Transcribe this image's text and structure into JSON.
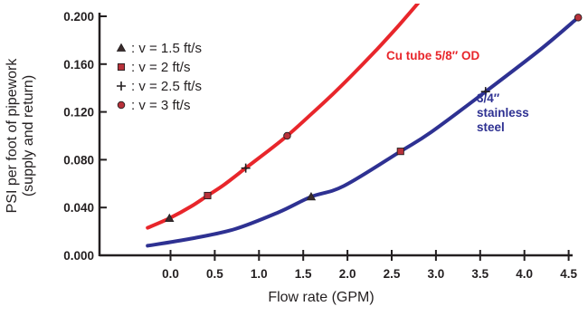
{
  "chart_data": {
    "type": "line",
    "xlabel": "Flow rate (GPM)",
    "ylabel_lines": [
      "PSI per foot of pipework",
      "(supply and return)"
    ],
    "x_ticks": [
      "0.0",
      "0.5",
      "1.0",
      "1.5",
      "2.0",
      "2.5",
      "3.0",
      "3.5",
      "4.0",
      "4.5"
    ],
    "y_ticks": [
      "0.000",
      "0.040",
      "0.080",
      "0.120",
      "0.160",
      "0.200"
    ],
    "xlim": [
      0.0,
      4.5
    ],
    "ylim": [
      0.0,
      0.2
    ],
    "grid": false,
    "legend_position": "top-left",
    "legend": [
      {
        "marker": "triangle",
        "label": ": v = 1.5 ft/s"
      },
      {
        "marker": "square",
        "label": ": v = 2 ft/s"
      },
      {
        "marker": "plus",
        "label": ": v = 2.5 ft/s"
      },
      {
        "marker": "circle",
        "label": ": v = 3 ft/s"
      }
    ],
    "series": [
      {
        "name": "Cu tube 5/8″ OD",
        "color": "#e8262b",
        "x": [
          0.4,
          0.6,
          0.8,
          0.95,
          1.1,
          1.3,
          1.5,
          1.68,
          1.9,
          2.1,
          2.3,
          2.5,
          2.7,
          2.9
        ],
        "y": [
          0.023,
          0.031,
          0.041,
          0.05,
          0.059,
          0.073,
          0.087,
          0.1,
          0.118,
          0.135,
          0.153,
          0.172,
          0.192,
          0.213
        ],
        "markers": [
          {
            "x": 0.6,
            "y": 0.031,
            "marker": "triangle"
          },
          {
            "x": 0.95,
            "y": 0.05,
            "marker": "square"
          },
          {
            "x": 1.3,
            "y": 0.073,
            "marker": "plus"
          },
          {
            "x": 1.68,
            "y": 0.1,
            "marker": "circle"
          }
        ]
      },
      {
        "name_lines": [
          "3/4″",
          "stainless",
          "steel"
        ],
        "color": "#2e3192",
        "x": [
          0.4,
          0.8,
          1.2,
          1.6,
          1.9,
          2.2,
          2.72,
          3.0,
          3.5,
          4.0,
          4.35
        ],
        "y": [
          0.008,
          0.014,
          0.022,
          0.036,
          0.049,
          0.058,
          0.087,
          0.103,
          0.137,
          0.172,
          0.199
        ],
        "markers": [
          {
            "x": 1.9,
            "y": 0.049,
            "marker": "triangle"
          },
          {
            "x": 2.72,
            "y": 0.087,
            "marker": "square"
          },
          {
            "x": 3.5,
            "y": 0.137,
            "marker": "plus"
          },
          {
            "x": 4.35,
            "y": 0.199,
            "marker": "circle"
          }
        ]
      }
    ]
  }
}
